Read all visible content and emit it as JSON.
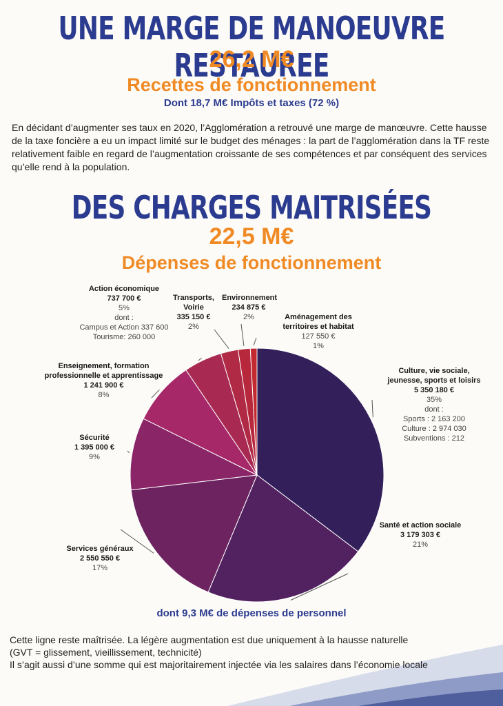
{
  "header1": {
    "title": "UNE MARGE DE MANOEUVRE RESTAUREE",
    "amount": "26,2 M€",
    "subtitle": "Recettes de fonctionnement",
    "detail": "Dont 18,7 M€ Impôts et taxes (72 %)"
  },
  "paragraph1": "En décidant d’augmenter ses taux en 2020, l’Agglomération a retrouvé une marge de manœuvre. Cette hausse de la taxe foncière a eu un impact limité sur le budget des ménages : la part de l’agglomération dans la TF reste relativement faible en regard de l’augmentation croissante de ses compétences et par conséquent des services qu’elle rend à la population.",
  "header2": {
    "title": "DES CHARGES MAITRISÉES",
    "amount": "22,5 M€",
    "subtitle": "Dépenses de fonctionnement"
  },
  "personnel_note": "dont 9,3 M€ de dépenses de personnel",
  "paragraph2": {
    "line1": "Cette ligne reste maîtrisée. La légère augmentation est due uniquement à la hausse naturelle",
    "line2": "(GVT = glissement, vieillissement, technicité)",
    "line3": "Il s’agit aussi d’une somme qui est majoritairement injectée via les salaires dans l’économie locale"
  },
  "chart_data": {
    "type": "pie",
    "title": "",
    "unit": "€",
    "slices": [
      {
        "name": "Culture, vie sociale, jeunesse, sports et loisirs",
        "value": 5350180,
        "value_label": "5 350 180 €",
        "pct_label": "35%",
        "color": "#33205a",
        "details": [
          "dont :",
          "Sports : 2 163 200",
          "Culture : 2 974 030",
          "Subventions : 212"
        ]
      },
      {
        "name": "Santé et action sociale",
        "value": 3179303,
        "value_label": "3 179 303 €",
        "pct_label": "21%",
        "color": "#512160",
        "details": []
      },
      {
        "name": "Services généraux",
        "value": 2550550,
        "value_label": "2 550 550 €",
        "pct_label": "17%",
        "color": "#6c2360",
        "details": []
      },
      {
        "name": "Sécurité",
        "value": 1395000,
        "value_label": "1 395 000 €",
        "pct_label": "9%",
        "color": "#8a2668",
        "details": []
      },
      {
        "name": "Enseignement, formation professionnelle et apprentissage",
        "value": 1241900,
        "value_label": "1 241 900 €",
        "pct_label": "8%",
        "color": "#a62868",
        "details": []
      },
      {
        "name": "Action économique",
        "value": 737700,
        "value_label": "737 700 €",
        "pct_label": "5%",
        "color": "#a82a52",
        "details": [
          "dont :",
          "Campus et Action 337 600",
          "Tourisme: 260 000"
        ]
      },
      {
        "name": "Transports, Voirie",
        "value": 335150,
        "value_label": "335 150 €",
        "pct_label": "2%",
        "color": "#b12a45",
        "details": []
      },
      {
        "name": "Environnement",
        "value": 234875,
        "value_label": "234 875 €",
        "pct_label": "2%",
        "color": "#b8283d",
        "details": []
      },
      {
        "name": "Aménagement des territoires et habitat",
        "value": 127550,
        "value_label": "127 550 €",
        "pct_label": "1%",
        "color": "#c22a30",
        "details": []
      }
    ]
  }
}
